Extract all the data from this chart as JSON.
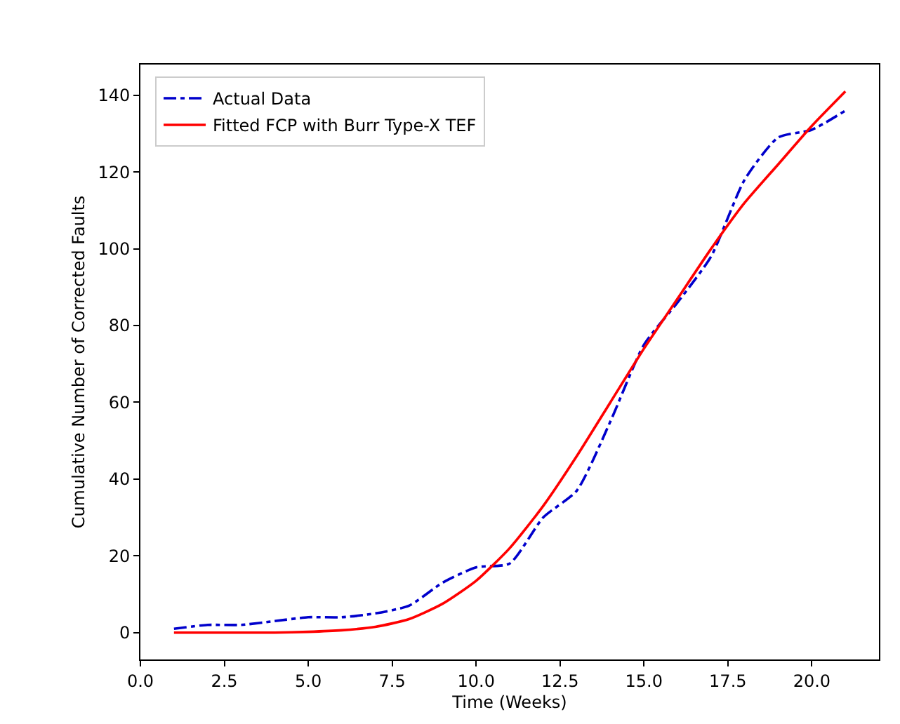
{
  "chart_data": {
    "type": "line",
    "xlabel": "Time (Weeks)",
    "ylabel": "Cumulative Number of Corrected Faults",
    "x": [
      1,
      2,
      3,
      4,
      5,
      6,
      7,
      8,
      9,
      10,
      11,
      12,
      13,
      14,
      15,
      16,
      17,
      18,
      19,
      20,
      21
    ],
    "series": [
      {
        "name": "Actual Data",
        "color": "#0000cc",
        "line_style": "dashdot",
        "values": [
          1,
          2,
          2,
          3,
          4,
          4,
          5,
          7,
          13,
          17,
          18,
          30,
          37,
          55,
          75,
          86,
          98,
          118,
          129,
          131,
          136
        ]
      },
      {
        "name": "Fitted FCP with Burr Type-X TEF",
        "color": "#ff0000",
        "line_style": "solid",
        "values": [
          0,
          0,
          0,
          0,
          0.2,
          0.6,
          1.5,
          3.5,
          7.5,
          13.5,
          22,
          33,
          46,
          60,
          74,
          87,
          100,
          112,
          122,
          132,
          141
        ]
      }
    ],
    "xlim": [
      0,
      22
    ],
    "ylim": [
      -7,
      148
    ],
    "xticks": [
      {
        "value": 0,
        "label": "0.0"
      },
      {
        "value": 2.5,
        "label": "2.5"
      },
      {
        "value": 5,
        "label": "5.0"
      },
      {
        "value": 7.5,
        "label": "7.5"
      },
      {
        "value": 10,
        "label": "10.0"
      },
      {
        "value": 12.5,
        "label": "12.5"
      },
      {
        "value": 15,
        "label": "15.0"
      },
      {
        "value": 17.5,
        "label": "17.5"
      },
      {
        "value": 20,
        "label": "20.0"
      }
    ],
    "yticks": [
      0,
      20,
      40,
      60,
      80,
      100,
      120,
      140
    ],
    "legend": "top left",
    "marker": "none"
  }
}
